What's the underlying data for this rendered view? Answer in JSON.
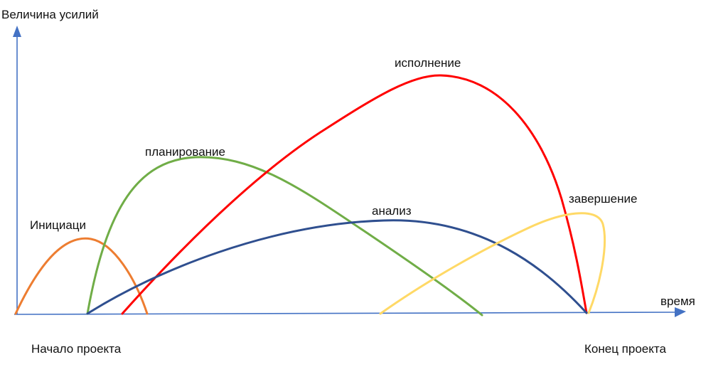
{
  "axes": {
    "y_label": "Величина усилий",
    "x_label": "время",
    "color": "#4472C4"
  },
  "markers": {
    "start": "Начало проекта",
    "end": "Конец проекта"
  },
  "phases": [
    {
      "label": "Инициаци",
      "color": "#ED7D31"
    },
    {
      "label": "планирование",
      "color": "#70AD47"
    },
    {
      "label": "исполнение",
      "color": "#FF0000"
    },
    {
      "label": "анализ",
      "color": "#2F4F8F"
    },
    {
      "label": "завершение",
      "color": "#FFD966"
    }
  ]
}
